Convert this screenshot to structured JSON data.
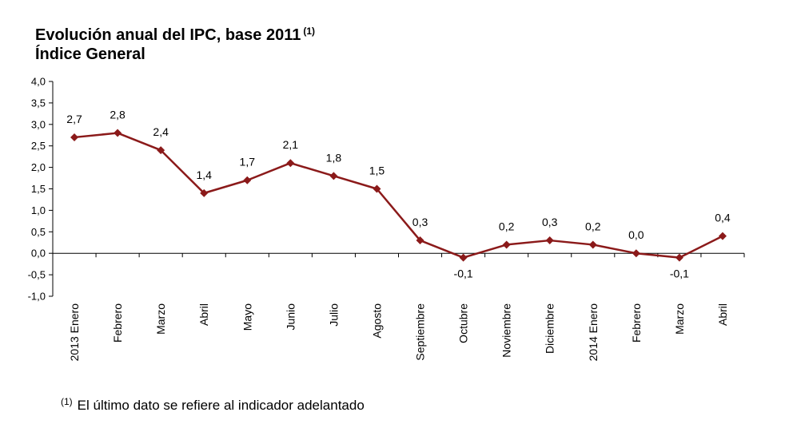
{
  "title": {
    "line1": "Evolución anual del IPC, base 2011",
    "line1_sup": "(1)",
    "line2": "Índice General"
  },
  "footnote": {
    "marker": "(1)",
    "text": "El último dato se refiere al indicador adelantado"
  },
  "chart_data": {
    "type": "line",
    "categories": [
      "2013 Enero",
      "Febrero",
      "Marzo",
      "Abril",
      "Mayo",
      "Junio",
      "Julio",
      "Agosto",
      "Septiembre",
      "Octubre",
      "Noviembre",
      "Diciembre",
      "2014 Enero",
      "Febrero",
      "Marzo",
      "Abril"
    ],
    "series": [
      {
        "values": [
          2.7,
          2.8,
          2.4,
          1.4,
          1.7,
          2.1,
          1.8,
          1.5,
          0.3,
          -0.1,
          0.2,
          0.3,
          0.2,
          0.0,
          -0.1,
          0.4
        ],
        "labels": [
          "2,7",
          "2,8",
          "2,4",
          "1,4",
          "1,7",
          "2,1",
          "1,8",
          "1,5",
          "0,3",
          "-0,1",
          "0,2",
          "0,3",
          "0,2",
          "0,0",
          "-0,1",
          "0,4"
        ],
        "color": "#8B1A1A"
      }
    ],
    "ylim": [
      -1.0,
      4.0
    ],
    "yticks": [
      4.0,
      3.5,
      3.0,
      2.5,
      2.0,
      1.5,
      1.0,
      0.5,
      0.0,
      -0.5,
      -1.0
    ],
    "ytick_labels": [
      "4,0",
      "3,5",
      "3,0",
      "2,5",
      "2,0",
      "1,5",
      "1,0",
      "0,5",
      "0,0",
      "-0,5",
      "-1,0"
    ],
    "grid": false,
    "legend": "none"
  }
}
